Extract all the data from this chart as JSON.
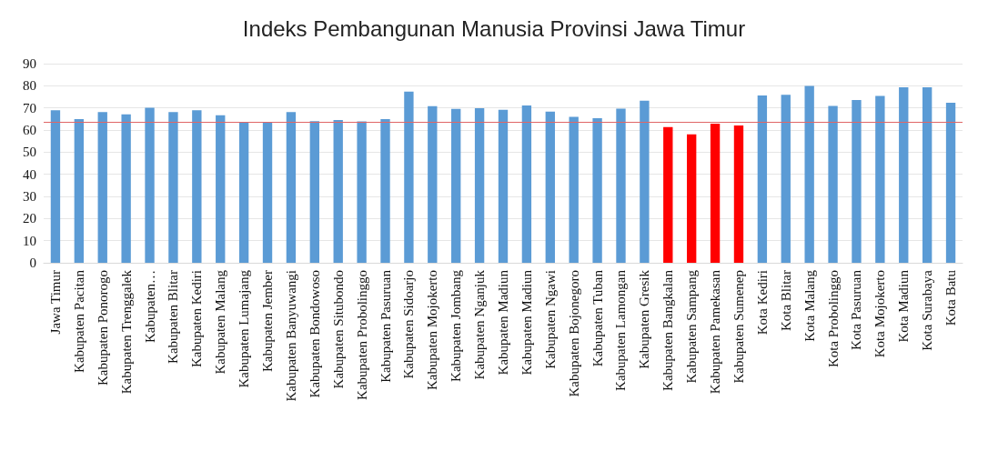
{
  "chart_data": {
    "type": "bar",
    "title": "Indeks Pembangunan Manusia Provinsi Jawa Timur",
    "categories": [
      "Jawa Timur",
      "Kabupaten Pacitan",
      "Kabupaten Ponorogo",
      "Kabupaten Trenggalek",
      "Kabupaten…",
      "Kabupaten Blitar",
      "Kabupaten Kediri",
      "Kabupaten Malang",
      "Kabupaten Lumajang",
      "Kabupaten Jember",
      "Kabupaten Banyuwangi",
      "Kabupaten Bondowoso",
      "Kabupaten Situbondo",
      "Kabupaten Probolinggo",
      "Kabupaten Pasuruan",
      "Kabupaten Sidoarjo",
      "Kabupaten Mojokerto",
      "Kabupaten Jombang",
      "Kabupaten Nganjuk",
      "Kabupaten Madiun",
      "Kabupaten Madiun",
      "Kabupaten Ngawi",
      "Kabupaten Bojonegoro",
      "Kabupaten Tuban",
      "Kabupaten Lamongan",
      "Kabupaten Gresik",
      "Kabupaten Bangkalan",
      "Kabupaten Sampang",
      "Kabupaten Pamekasan",
      "Kabupaten Sumenep",
      "Kota Kediri",
      "Kota Blitar",
      "Kota Malang",
      "Kota Probolinggo",
      "Kota Pasuruan",
      "Kota Mojokerto",
      "Kota Madiun",
      "Kota Surabaya",
      "Kota Batu"
    ],
    "values": [
      68.9,
      64.9,
      68.1,
      67.1,
      70.1,
      68.1,
      68.9,
      66.7,
      63.3,
      63.3,
      68.1,
      64.0,
      64.5,
      63.9,
      64.9,
      77.4,
      70.8,
      69.6,
      69.9,
      69.1,
      71.1,
      68.3,
      66.0,
      65.3,
      69.7,
      73.3,
      61.3,
      58.0,
      62.9,
      62.1,
      75.6,
      75.9,
      79.9,
      70.9,
      73.6,
      75.4,
      79.3,
      79.3,
      72.3
    ],
    "colors": [
      "#5b9bd5",
      "#5b9bd5",
      "#5b9bd5",
      "#5b9bd5",
      "#5b9bd5",
      "#5b9bd5",
      "#5b9bd5",
      "#5b9bd5",
      "#5b9bd5",
      "#5b9bd5",
      "#5b9bd5",
      "#5b9bd5",
      "#5b9bd5",
      "#5b9bd5",
      "#5b9bd5",
      "#5b9bd5",
      "#5b9bd5",
      "#5b9bd5",
      "#5b9bd5",
      "#5b9bd5",
      "#5b9bd5",
      "#5b9bd5",
      "#5b9bd5",
      "#5b9bd5",
      "#5b9bd5",
      "#5b9bd5",
      "#ff0000",
      "#ff0000",
      "#ff0000",
      "#ff0000",
      "#5b9bd5",
      "#5b9bd5",
      "#5b9bd5",
      "#5b9bd5",
      "#5b9bd5",
      "#5b9bd5",
      "#5b9bd5",
      "#5b9bd5",
      "#5b9bd5"
    ],
    "ylim": [
      0,
      90
    ],
    "yticks": [
      0,
      10,
      20,
      30,
      40,
      50,
      60,
      70,
      80,
      90
    ],
    "grid": "y",
    "ref_lines": [
      {
        "axis": "y",
        "value": 63.5,
        "color": "#e06666"
      }
    ]
  }
}
